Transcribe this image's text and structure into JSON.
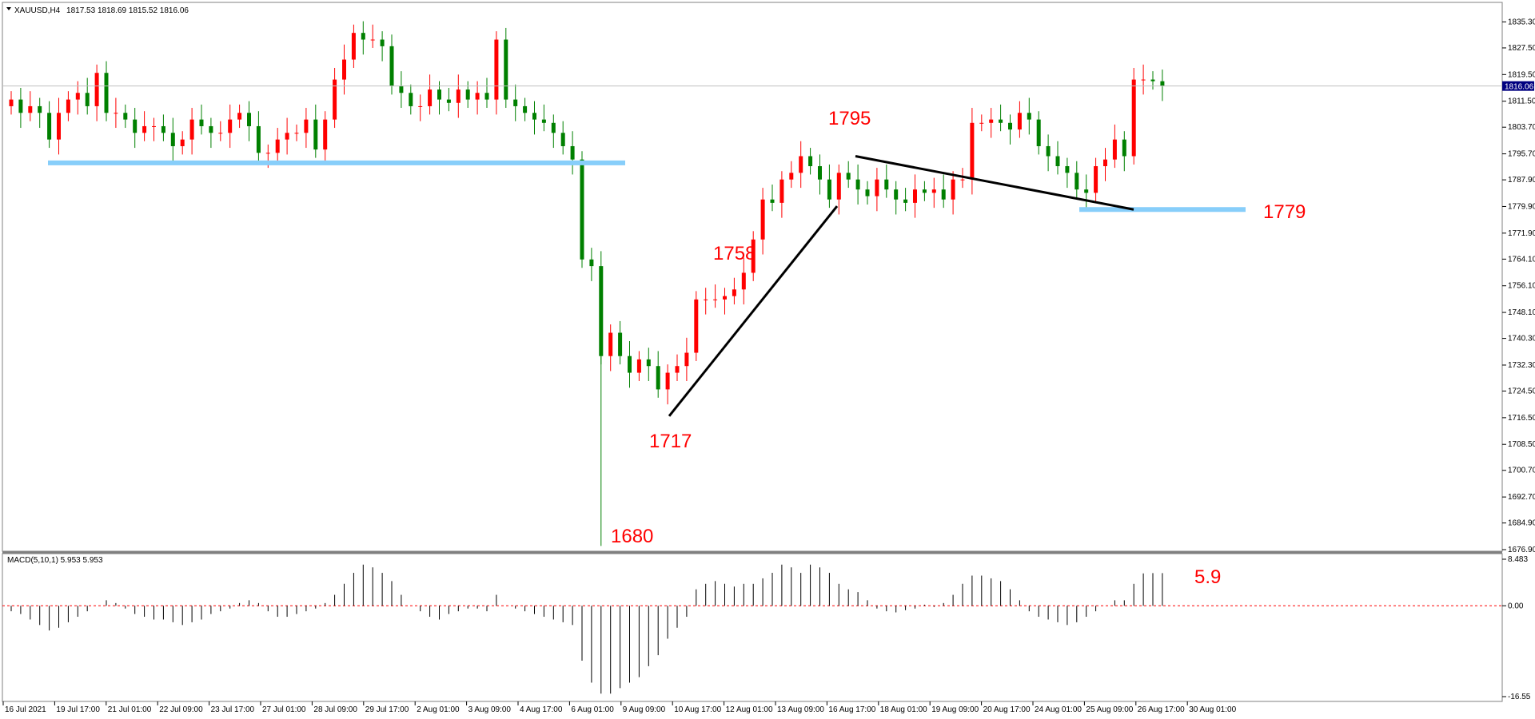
{
  "header": {
    "symbol": "XAUUSD,H4",
    "ohlc": "1817.53 1818.69 1815.52 1816.06"
  },
  "chart_data": {
    "type": "candlestick",
    "symbol": "XAUUSD",
    "timeframe": "H4",
    "ylim": [
      1676.9,
      1839
    ],
    "y_ticks": [
      "1835.30",
      "1827.50",
      "1819.50",
      "1811.50",
      "1803.70",
      "1795.70",
      "1787.90",
      "1779.90",
      "1771.90",
      "1764.10",
      "1756.10",
      "1748.10",
      "1740.30",
      "1732.30",
      "1724.50",
      "1716.50",
      "1708.50",
      "1700.70",
      "1692.70",
      "1684.90",
      "1676.90"
    ],
    "current_price": "1816.06",
    "current_price_color": "#000080",
    "x_ticks": [
      "16 Jul 2021",
      "19 Jul 17:00",
      "21 Jul 01:00",
      "22 Jul 09:00",
      "23 Jul 17:00",
      "27 Jul 01:00",
      "28 Jul 09:00",
      "29 Jul 17:00",
      "2 Aug 01:00",
      "3 Aug 09:00",
      "4 Aug 17:00",
      "6 Aug 01:00",
      "9 Aug 09:00",
      "10 Aug 17:00",
      "12 Aug 01:00",
      "13 Aug 09:00",
      "16 Aug 17:00",
      "18 Aug 01:00",
      "19 Aug 09:00",
      "20 Aug 17:00",
      "24 Aug 01:00",
      "25 Aug 09:00",
      "26 Aug 17:00",
      "30 Aug 01:00"
    ],
    "bull_color": "#ff0000",
    "bear_color": "#008000",
    "closes": [
      1812,
      1808,
      1810,
      1808,
      1800,
      1808,
      1812,
      1814,
      1810,
      1820,
      1808,
      1808,
      1806,
      1802,
      1804,
      1804,
      1802,
      1798,
      1800,
      1806,
      1804,
      1802,
      1802,
      1806,
      1808,
      1804,
      1796,
      1796,
      1800,
      1802,
      1802,
      1806,
      1797,
      1806,
      1818,
      1824,
      1832,
      1830,
      1830,
      1828,
      1816,
      1814,
      1810,
      1810,
      1815,
      1812,
      1811,
      1815,
      1812,
      1814,
      1812,
      1830,
      1812,
      1810,
      1808,
      1806,
      1805,
      1802,
      1798,
      1794,
      1764,
      1762,
      1735,
      1742,
      1735,
      1730,
      1734,
      1732,
      1725,
      1730,
      1732,
      1736,
      1752,
      1752,
      1752,
      1753,
      1755,
      1760,
      1770,
      1782,
      1781,
      1788,
      1790,
      1795,
      1792,
      1788,
      1782,
      1790,
      1788,
      1785,
      1783,
      1788,
      1785,
      1782,
      1781,
      1785,
      1784,
      1785,
      1782,
      1788,
      1788,
      1805,
      1805,
      1806,
      1805,
      1803,
      1808,
      1806,
      1798,
      1795,
      1792,
      1790,
      1785,
      1784,
      1792,
      1794,
      1800,
      1795,
      1818,
      1818,
      1817.5,
      1816.06
    ],
    "ohlc_sample_note": "",
    "support_levels": [
      1793,
      1779
    ],
    "trendlines": [
      {
        "from": [
          71,
          1717
        ],
        "to": [
          82,
          1779
        ]
      },
      {
        "from": [
          84,
          1795
        ],
        "to": [
          111,
          1779
        ]
      }
    ],
    "annotations": [
      "1795",
      "1758",
      "1717",
      "1680",
      "1779"
    ],
    "macd": {
      "label": "MACD(5,10,1) 5.953 5.953",
      "ylim": [
        -16.55,
        8.483
      ],
      "y_ticks": [
        "8.483",
        "0.00",
        "-16.55"
      ],
      "annotation": "5.9",
      "values": [
        -1,
        -1.5,
        -2.5,
        -3.5,
        -4.5,
        -4,
        -3,
        -2,
        -1,
        0,
        1,
        0.5,
        -0.5,
        -1.5,
        -2,
        -2.5,
        -2.5,
        -3,
        -3.5,
        -3,
        -2.5,
        -1.5,
        -1,
        -0.5,
        0.5,
        1,
        0.5,
        -1,
        -2,
        -2,
        -1.5,
        -1,
        -0.5,
        0.5,
        2,
        4,
        6,
        7.5,
        7,
        6,
        4.5,
        2,
        0,
        -1,
        -2,
        -2.5,
        -1.5,
        -1,
        -0.5,
        -0.5,
        -1,
        2,
        0,
        -0.5,
        -1,
        -1.5,
        -2,
        -2.5,
        -3,
        -3.5,
        -10,
        -14,
        -16,
        -16,
        -15,
        -14,
        -13,
        -11,
        -9,
        -6,
        -4,
        -2,
        3,
        4,
        4.5,
        4,
        3.5,
        4,
        4,
        5,
        6,
        7.5,
        7,
        6,
        7.5,
        7,
        6,
        4,
        3,
        2.5,
        1,
        -0.5,
        -1,
        -1.2,
        -0.8,
        -0.5,
        0.2,
        -0.2,
        0.5,
        2,
        4,
        5.5,
        5.5,
        5,
        4.5,
        3,
        1,
        -1,
        -2,
        -2.5,
        -3,
        -3.5,
        -3,
        -2,
        -1,
        0,
        1,
        1,
        4,
        5.9,
        5.953,
        5.953
      ]
    }
  }
}
